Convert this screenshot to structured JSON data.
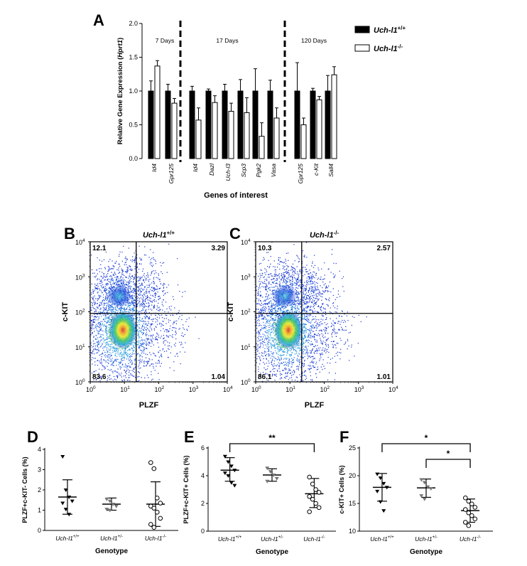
{
  "figure": {
    "panel_letters": [
      "A",
      "B",
      "C",
      "D",
      "E",
      "F"
    ]
  },
  "chart_data": [
    {
      "panel": "A",
      "type": "bar",
      "ylabel": "Relative Gene Expression (Hprt1)",
      "xlabel": "Genes of interest",
      "ylim": [
        0,
        2.0
      ],
      "yticks": [
        "0.0",
        "0.5",
        "1.0",
        "1.5",
        "2.0"
      ],
      "groups": [
        {
          "label": "7 Days",
          "categories": [
            "Id4",
            "Gpr125"
          ]
        },
        {
          "label": "17 Days",
          "categories": [
            "Id4",
            "Dazl",
            "Uch-l3",
            "Scp3",
            "Pgk2",
            "Vasa"
          ]
        },
        {
          "label": "120 Days",
          "categories": [
            "Gpr125",
            "c-Kit",
            "Sall4"
          ]
        }
      ],
      "series": [
        {
          "name": "Uch-l1+/+",
          "color": "#000000",
          "values": [
            1.0,
            1.0,
            1.0,
            1.0,
            1.0,
            1.0,
            1.0,
            1.0,
            1.0,
            1.0,
            1.0
          ],
          "errors": [
            0.15,
            0.1,
            0.07,
            0.03,
            0.1,
            0.17,
            0.33,
            0.16,
            0.42,
            0.04,
            0.23
          ]
        },
        {
          "name": "Uch-l1-/-",
          "color": "#ffffff",
          "values": [
            1.37,
            0.82,
            0.57,
            0.83,
            0.7,
            0.68,
            0.33,
            0.6,
            0.5,
            0.87,
            1.24
          ],
          "errors": [
            0.08,
            0.07,
            0.18,
            0.1,
            0.12,
            0.22,
            0.2,
            0.15,
            0.1,
            0.05,
            0.12
          ]
        }
      ],
      "legend": [
        "Uch-l1",
        "+/+",
        "Uch-l1",
        "-/-"
      ]
    },
    {
      "panel": "B",
      "type": "scatter",
      "title": "Uch-l1",
      "title_sup": "+/+",
      "xlabel": "PLZF",
      "ylabel": "c-KIT",
      "xticks": [
        "10",
        "10",
        "10",
        "10",
        "10"
      ],
      "tick_exponents": [
        "0",
        "1",
        "2",
        "3",
        "4"
      ],
      "scale": "log",
      "xlim": [
        1,
        10000
      ],
      "ylim": [
        1,
        10000
      ],
      "quadrants": [
        "12.1",
        "3.29",
        "83.6",
        "1.04"
      ]
    },
    {
      "panel": "C",
      "type": "scatter",
      "title": "Uch-l1",
      "title_sup": "-/-",
      "xlabel": "PLZF",
      "ylabel": "c-KIT",
      "scale": "log",
      "xlim": [
        1,
        10000
      ],
      "ylim": [
        1,
        10000
      ],
      "quadrants": [
        "10.3",
        "2.57",
        "86.1",
        "1.01"
      ]
    },
    {
      "panel": "D",
      "type": "scatter",
      "ylabel": "PLZF+c-KIT- Cells (%)",
      "xlabel": "Genotype",
      "ylim": [
        0,
        4
      ],
      "yticks": [
        "0",
        "1",
        "2",
        "3",
        "4"
      ],
      "categories": [
        "Uch-l1",
        "Uch-l1",
        "Uch-l1"
      ],
      "category_sups": [
        "+/+",
        "+/-",
        "-/-"
      ],
      "groups": [
        {
          "mean": 1.65,
          "sd_low": 0.8,
          "sd_high": 2.5,
          "points": [
            3.65,
            2.0,
            1.65,
            1.45,
            1.35,
            1.05,
            0.8
          ]
        },
        {
          "mean": 1.3,
          "sd_low": 1.0,
          "sd_high": 1.6,
          "points": [
            1.55,
            1.45,
            1.3,
            1.2,
            1.05,
            1.0
          ]
        },
        {
          "mean": 1.3,
          "sd_low": 0.2,
          "sd_high": 2.4,
          "points": [
            3.35,
            3.05,
            1.6,
            1.35,
            1.2,
            1.1,
            0.9,
            0.6,
            0.3,
            0.15
          ]
        }
      ],
      "significance": []
    },
    {
      "panel": "E",
      "type": "scatter",
      "ylabel": "PLZF+c-KIT+ Cells (%)",
      "xlabel": "Genotype",
      "ylim": [
        0,
        6
      ],
      "yticks": [
        "0",
        "2",
        "4",
        "6"
      ],
      "categories": [
        "Uch-l1",
        "Uch-l1",
        "Uch-l1"
      ],
      "category_sups": [
        "+/+",
        "+/-",
        "-/-"
      ],
      "groups": [
        {
          "mean": 4.4,
          "sd_low": 3.6,
          "sd_high": 5.3,
          "points": [
            5.4,
            5.0,
            4.7,
            4.4,
            4.2,
            4.0,
            3.5,
            3.3
          ]
        },
        {
          "mean": 4.05,
          "sd_low": 3.6,
          "sd_high": 4.5,
          "points": [
            4.55,
            4.3,
            4.05,
            3.8,
            3.6
          ]
        },
        {
          "mean": 2.7,
          "sd_low": 1.7,
          "sd_high": 3.8,
          "points": [
            3.9,
            3.4,
            3.0,
            2.8,
            2.5,
            2.3,
            2.0,
            1.7,
            1.4
          ]
        }
      ],
      "significance": [
        {
          "from": 0,
          "to": 2,
          "label": "**"
        }
      ]
    },
    {
      "panel": "F",
      "type": "scatter",
      "ylabel": "c-KIT+ Cells (%)",
      "xlabel": "Genotype",
      "ylim": [
        10,
        25
      ],
      "yticks": [
        "10",
        "15",
        "20",
        "25"
      ],
      "categories": [
        "Uch-l1",
        "Uch-l1",
        "Uch-l1"
      ],
      "category_sups": [
        "+/+",
        "+/-",
        "-/-"
      ],
      "groups": [
        {
          "mean": 17.9,
          "sd_low": 15.4,
          "sd_high": 20.4,
          "points": [
            20.3,
            19.6,
            18.6,
            17.9,
            17.2,
            15.3,
            13.7
          ]
        },
        {
          "mean": 17.8,
          "sd_low": 16.1,
          "sd_high": 19.4,
          "points": [
            19.3,
            18.8,
            18.0,
            17.7,
            16.4,
            15.8
          ]
        },
        {
          "mean": 13.7,
          "sd_low": 11.6,
          "sd_high": 15.8,
          "points": [
            16.0,
            15.4,
            14.9,
            14.3,
            13.9,
            13.3,
            12.8,
            12.2,
            11.6,
            11.0
          ]
        }
      ],
      "significance": [
        {
          "from": 0,
          "to": 2,
          "label": "*"
        },
        {
          "from": 1,
          "to": 2,
          "label": "*"
        }
      ]
    }
  ]
}
